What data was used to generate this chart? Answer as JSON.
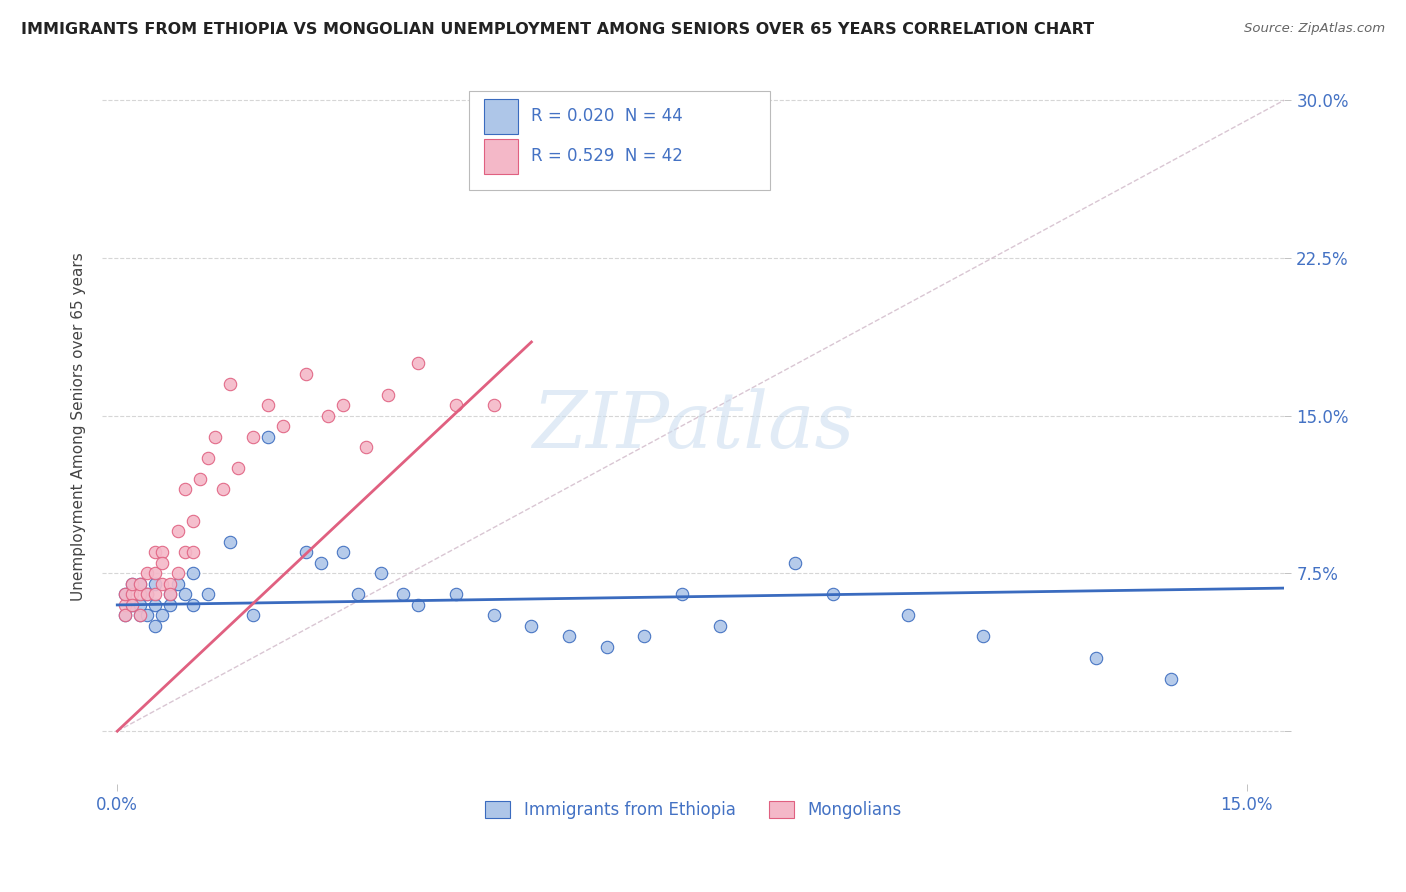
{
  "title": "IMMIGRANTS FROM ETHIOPIA VS MONGOLIAN UNEMPLOYMENT AMONG SENIORS OVER 65 YEARS CORRELATION CHART",
  "source": "Source: ZipAtlas.com",
  "ylabel": "Unemployment Among Seniors over 65 years",
  "xlim": [
    -0.002,
    0.155
  ],
  "ylim": [
    -0.025,
    0.315
  ],
  "ytick_positions": [
    0.0,
    0.075,
    0.15,
    0.225,
    0.3
  ],
  "ytick_labels": [
    "",
    "7.5%",
    "15.0%",
    "22.5%",
    "30.0%"
  ],
  "xtick_positions": [
    0.0,
    0.15
  ],
  "xtick_labels": [
    "0.0%",
    "15.0%"
  ],
  "watermark_text": "ZIPatlas",
  "blue_scatter_color": "#aec6e8",
  "blue_line_color": "#3a6bbf",
  "pink_scatter_color": "#f4b8c8",
  "pink_line_color": "#e06080",
  "text_color": "#4472c4",
  "diag_color": "#d8c8d8",
  "legend_r1": "R = 0.020  N = 44",
  "legend_r2": "R = 0.529  N = 42",
  "eth_line_x": [
    0.0,
    0.155
  ],
  "eth_line_y": [
    0.06,
    0.068
  ],
  "mon_line_x": [
    0.0,
    0.055
  ],
  "mon_line_y": [
    0.0,
    0.185
  ],
  "ethiopia_x": [
    0.001,
    0.001,
    0.002,
    0.002,
    0.003,
    0.003,
    0.003,
    0.004,
    0.004,
    0.005,
    0.005,
    0.005,
    0.006,
    0.007,
    0.007,
    0.008,
    0.009,
    0.01,
    0.01,
    0.012,
    0.015,
    0.018,
    0.02,
    0.025,
    0.027,
    0.03,
    0.032,
    0.035,
    0.038,
    0.04,
    0.045,
    0.05,
    0.055,
    0.06,
    0.065,
    0.07,
    0.075,
    0.08,
    0.09,
    0.095,
    0.105,
    0.115,
    0.13,
    0.14
  ],
  "ethiopia_y": [
    0.065,
    0.055,
    0.06,
    0.07,
    0.055,
    0.06,
    0.07,
    0.065,
    0.055,
    0.06,
    0.07,
    0.05,
    0.055,
    0.065,
    0.06,
    0.07,
    0.065,
    0.06,
    0.075,
    0.065,
    0.09,
    0.055,
    0.14,
    0.085,
    0.08,
    0.085,
    0.065,
    0.075,
    0.065,
    0.06,
    0.065,
    0.055,
    0.05,
    0.045,
    0.04,
    0.045,
    0.065,
    0.05,
    0.08,
    0.065,
    0.055,
    0.045,
    0.035,
    0.025
  ],
  "mongolia_x": [
    0.001,
    0.001,
    0.001,
    0.002,
    0.002,
    0.002,
    0.003,
    0.003,
    0.003,
    0.004,
    0.004,
    0.005,
    0.005,
    0.005,
    0.006,
    0.006,
    0.006,
    0.007,
    0.007,
    0.008,
    0.008,
    0.009,
    0.009,
    0.01,
    0.01,
    0.011,
    0.012,
    0.013,
    0.014,
    0.015,
    0.016,
    0.018,
    0.02,
    0.022,
    0.025,
    0.028,
    0.03,
    0.033,
    0.036,
    0.04,
    0.045,
    0.05
  ],
  "mongolia_y": [
    0.06,
    0.065,
    0.055,
    0.065,
    0.06,
    0.07,
    0.055,
    0.065,
    0.07,
    0.075,
    0.065,
    0.075,
    0.085,
    0.065,
    0.085,
    0.07,
    0.08,
    0.07,
    0.065,
    0.095,
    0.075,
    0.085,
    0.115,
    0.1,
    0.085,
    0.12,
    0.13,
    0.14,
    0.115,
    0.165,
    0.125,
    0.14,
    0.155,
    0.145,
    0.17,
    0.15,
    0.155,
    0.135,
    0.16,
    0.175,
    0.155,
    0.155
  ]
}
